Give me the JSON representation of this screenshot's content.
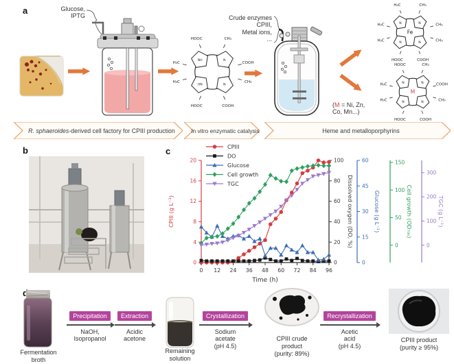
{
  "panel_labels": {
    "a": "a",
    "b": "b",
    "c": "c",
    "d": "d"
  },
  "panel_a": {
    "glucose_label": "Glucose,\nIPTG",
    "enzymes_label": "Crude enzymes\nCPIII,\nMetal ions,\n...",
    "m_note": {
      "open": "(",
      "m": "M",
      "rest": " = Ni, Zn,\nCo, Mn...)"
    },
    "m_color": "#d43d3d",
    "arrow_color": "#e2783b",
    "banners": [
      {
        "italic": "R. sphaeroides",
        "text": "-derived cell factory for CPIII production"
      },
      {
        "italic": "",
        "text": "In vitro enzymatic catalysis"
      },
      {
        "italic": "",
        "text": "Heme and metalloporphyrins"
      }
    ],
    "structures": {
      "substrate": {
        "center": "",
        "center_color": "#222222",
        "ring_n": [
          "NH",
          "N",
          "N",
          "HN"
        ],
        "labels": [
          "HOOC",
          "CH₃",
          "H₃C",
          "COOH",
          "H₃C",
          "CH₃",
          "HOOC",
          "COOH"
        ]
      },
      "heme": {
        "center": "Fe",
        "center_color": "#222222",
        "ring_n": [
          "N",
          "N",
          "N",
          "N"
        ],
        "labels": [
          "H₂C",
          "CH₃",
          "H₃C",
          "CH₂",
          "H₃C",
          "CH₃",
          "HOOC",
          "COOH"
        ]
      },
      "metallo": {
        "center": "M",
        "center_color": "#d43d3d",
        "ring_n": [
          "N",
          "N",
          "N",
          "N"
        ],
        "labels": [
          "HOOC",
          "CH₃",
          "H₃C",
          "COOH",
          "H₃C",
          "CH₃",
          "HOOC",
          "COOH"
        ]
      }
    }
  },
  "chart_data": {
    "type": "line",
    "title": "",
    "xlabel": "Time (h)",
    "x_range": [
      0,
      96
    ],
    "x_ticks": [
      0,
      12,
      24,
      36,
      48,
      60,
      72,
      84,
      96
    ],
    "x": [
      0,
      4,
      8,
      12,
      16,
      20,
      24,
      28,
      32,
      36,
      40,
      44,
      48,
      52,
      56,
      60,
      64,
      68,
      72,
      76,
      80,
      84,
      88,
      92,
      96
    ],
    "legend_position": "top-left",
    "grid": false,
    "axes": [
      {
        "id": "cpiii",
        "label": "CPIII (g L⁻¹)",
        "color": "#d43d3d",
        "min": 0,
        "max": 20,
        "ticks": [
          0,
          4,
          8,
          12,
          16,
          20
        ],
        "frac0": 0,
        "frac1": 1,
        "pos": "left"
      },
      {
        "id": "do",
        "label": "Dissolved oxygen (DO, %)",
        "color": "#3a3a3a",
        "min": 0,
        "max": 100,
        "ticks": [
          0,
          20,
          40,
          60,
          80,
          100
        ],
        "frac0": 0,
        "frac1": 1,
        "pos": "right"
      },
      {
        "id": "glucose",
        "label": "Glucose (g L⁻¹)",
        "color": "#3b6cb5",
        "min": 0,
        "max": 60,
        "ticks": [
          0,
          15,
          30,
          45,
          60
        ],
        "frac0": 0,
        "frac1": 1,
        "pos": "right-offset-1"
      },
      {
        "id": "cell",
        "label": "Cell growth (OD₇₀₀)",
        "color": "#2f9f5f",
        "min": 0,
        "max": 150,
        "ticks": [
          0,
          50,
          100,
          150
        ],
        "frac0": 0.17,
        "frac1": 0.98,
        "pos": "right-offset-2"
      },
      {
        "id": "tgc",
        "label": "TGC (g L⁻¹)",
        "color": "#9b79c9",
        "min": 0,
        "max": 300,
        "ticks": [
          0,
          100,
          200,
          300
        ],
        "frac0": 0.17,
        "frac1": 0.88,
        "pos": "right-offset-3"
      }
    ],
    "series": [
      {
        "name": "CPIII",
        "axis": "cpiii",
        "marker": "circle",
        "color": "#d43d3d",
        "values": [
          0,
          0,
          0,
          0,
          0,
          0,
          0.2,
          0.9,
          1.6,
          2.3,
          3.0,
          3.7,
          4.4,
          7.5,
          8.6,
          9.9,
          12.2,
          13.7,
          15.5,
          17.5,
          18.0,
          18.6,
          20.0,
          19.6,
          19.7
        ]
      },
      {
        "name": "DO",
        "axis": "do",
        "marker": "square",
        "color": "#1a1a1a",
        "values": [
          2,
          1.5,
          1.5,
          1.5,
          1.5,
          1.5,
          1.5,
          1.5,
          1.5,
          1.5,
          2,
          2.5,
          4.5,
          3,
          1.5,
          1.5,
          3.5,
          2,
          4,
          2,
          1.5,
          1.5,
          1,
          1.5,
          1.5
        ]
      },
      {
        "name": "Glucose",
        "axis": "glucose",
        "marker": "triangle-up",
        "color": "#3b6cb5",
        "values": [
          21,
          17.5,
          15,
          21.5,
          15.5,
          14,
          15.5,
          16,
          14,
          15.5,
          12.5,
          14,
          4,
          8.5,
          8.5,
          4.5,
          10,
          7.5,
          6,
          10,
          6,
          6,
          1.5,
          2,
          4.5
        ]
      },
      {
        "name": "Cell growth",
        "axis": "cell",
        "marker": "diamond",
        "color": "#2f9f5f",
        "values": [
          4,
          13,
          15,
          16,
          21,
          30,
          39,
          51,
          64,
          76,
          85,
          97,
          110,
          127,
          121,
          116,
          115,
          135,
          139,
          141,
          143,
          144,
          145,
          144,
          144
        ]
      },
      {
        "name": "TGC",
        "axis": "tgc",
        "marker": "triangle-down",
        "color": "#9b79c9",
        "values": [
          0,
          3,
          6,
          8,
          12,
          20,
          30,
          40,
          52,
          65,
          80,
          95,
          110,
          125,
          140,
          160,
          185,
          205,
          230,
          255,
          270,
          285,
          290,
          295,
          300
        ]
      }
    ]
  },
  "panel_d": {
    "accent": "#b4449c",
    "steps": [
      {
        "label": "Precipitation",
        "reagent": "NaOH,\nIsopropanol"
      },
      {
        "label": "Extraction",
        "reagent": "Acidic\nacetone"
      },
      {
        "label": "Crystallization",
        "reagent": "Sodium\nacetate\n(pH 4.5)"
      },
      {
        "label": "Recrystallization",
        "reagent": "Acetic\nacid\n(pH 4.5)"
      }
    ],
    "captions": {
      "broth": "Fermentation\nbroth",
      "remaining": "Remaining\nsolution",
      "crude": "CPIII crude\nproduct\n(purity: 89%)",
      "product": "CPIII product\n(purity ≥ 95%)"
    }
  }
}
